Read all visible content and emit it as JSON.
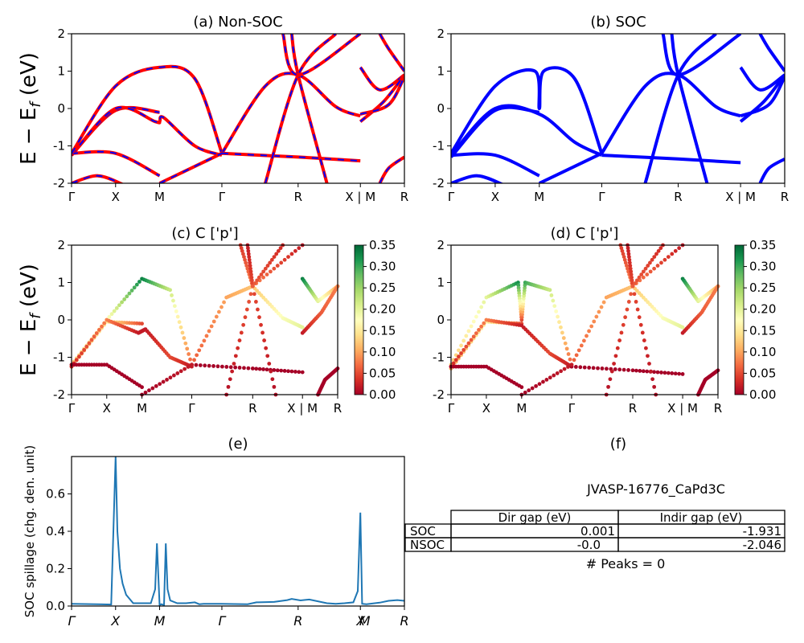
{
  "colors": {
    "red": "#ff0000",
    "blue": "#0000ff",
    "spillage": "#1f77b4"
  },
  "chart_data": [
    {
      "id": "a",
      "type": "line",
      "title": "(a) Non-SOC",
      "ylabel": "E − E_f (eV)",
      "ylim": [
        -2,
        2
      ],
      "yticks": [
        -2,
        -1,
        0,
        1,
        2
      ],
      "kpath": [
        "Γ",
        "X",
        "M",
        "Γ",
        "R",
        "X | M",
        "R"
      ],
      "kpos": [
        0,
        0.5,
        1.0,
        1.707,
        2.573,
        3.28,
        3.78
      ],
      "style": "red-blue dashed",
      "series": [
        {
          "x": [
            0,
            0.5,
            1.0
          ],
          "y": [
            -1.25,
            -0.05,
            -0.1
          ]
        },
        {
          "x": [
            0,
            0.5,
            0.95,
            1.0,
            1.05,
            1.4,
            1.707
          ],
          "y": [
            -1.25,
            0.0,
            -0.35,
            -0.35,
            -0.25,
            -1.0,
            -1.25
          ]
        },
        {
          "x": [
            0,
            0.5,
            1.0
          ],
          "y": [
            -1.2,
            -1.2,
            -1.8
          ]
        },
        {
          "x": [
            0,
            0.5,
            1.0,
            1.4,
            1.707
          ],
          "y": [
            -1.2,
            0.6,
            1.1,
            0.8,
            -1.2
          ]
        },
        {
          "x": [
            0,
            0.3,
            0.6
          ],
          "y": [
            -2.0,
            -1.8,
            -2.05
          ]
        },
        {
          "x": [
            1.707,
            2.2,
            2.573,
            3.0,
            3.28
          ],
          "y": [
            -1.2,
            0.6,
            0.9,
            0.05,
            -0.2
          ]
        },
        {
          "x": [
            1.707,
            2.573,
            3.28
          ],
          "y": [
            -1.2,
            -1.3,
            -1.4
          ]
        },
        {
          "x": [
            1.0,
            1.707
          ],
          "y": [
            -2.0,
            -1.2
          ]
        },
        {
          "x": [
            2.4,
            2.573,
            3.28
          ],
          "y": [
            2.0,
            0.9,
            2.0
          ]
        },
        {
          "x": [
            2.5,
            2.573,
            2.9
          ],
          "y": [
            2.0,
            0.9,
            -2.0
          ]
        },
        {
          "x": [
            2.2,
            2.573,
            3.0
          ],
          "y": [
            -2.0,
            0.9,
            2.0
          ]
        },
        {
          "x": [
            3.28,
            3.5,
            3.78
          ],
          "y": [
            1.1,
            0.5,
            0.9
          ]
        },
        {
          "x": [
            3.28,
            3.55,
            3.78
          ],
          "y": [
            -0.35,
            0.2,
            0.9
          ]
        },
        {
          "x": [
            3.28,
            3.6,
            3.78
          ],
          "y": [
            -0.15,
            0.1,
            0.85
          ]
        },
        {
          "x": [
            3.5,
            3.6,
            3.78
          ],
          "y": [
            2.0,
            1.6,
            1.0
          ]
        },
        {
          "x": [
            3.5,
            3.6,
            3.78
          ],
          "y": [
            -2.0,
            -1.6,
            -1.3
          ]
        }
      ]
    },
    {
      "id": "b",
      "type": "line",
      "title": "(b) SOC",
      "ylim": [
        -2,
        2
      ],
      "yticks": [
        -2,
        -1,
        0,
        1,
        2
      ],
      "kpath": [
        "Γ",
        "X",
        "M",
        "Γ",
        "R",
        "X | M",
        "R"
      ],
      "kpos": [
        0,
        0.5,
        1.0,
        1.707,
        2.573,
        3.28,
        3.78
      ],
      "style": "blue solid",
      "series": [
        {
          "x": [
            0,
            0.5,
            1.0
          ],
          "y": [
            -1.3,
            -0.05,
            -0.1
          ]
        },
        {
          "x": [
            0,
            0.5,
            1.0,
            1.4,
            1.707
          ],
          "y": [
            -1.25,
            0.0,
            -0.15,
            -0.9,
            -1.25
          ]
        },
        {
          "x": [
            0,
            0.5,
            1.0
          ],
          "y": [
            -1.25,
            -1.25,
            -1.8
          ]
        },
        {
          "x": [
            0,
            0.5,
            0.95,
            1.0,
            1.05,
            1.4,
            1.707
          ],
          "y": [
            -1.2,
            0.6,
            1.0,
            0.0,
            1.0,
            0.8,
            -1.2
          ]
        },
        {
          "x": [
            0,
            0.3,
            0.6
          ],
          "y": [
            -2.0,
            -1.8,
            -2.05
          ]
        },
        {
          "x": [
            1.707,
            2.2,
            2.573,
            3.0,
            3.28
          ],
          "y": [
            -1.2,
            0.6,
            0.9,
            0.05,
            -0.2
          ]
        },
        {
          "x": [
            1.707,
            2.573,
            3.28
          ],
          "y": [
            -1.25,
            -1.35,
            -1.45
          ]
        },
        {
          "x": [
            1.0,
            1.707
          ],
          "y": [
            -2.0,
            -1.2
          ]
        },
        {
          "x": [
            2.4,
            2.573,
            3.28
          ],
          "y": [
            2.0,
            0.9,
            2.0
          ]
        },
        {
          "x": [
            2.5,
            2.573,
            2.9
          ],
          "y": [
            2.0,
            0.9,
            -2.0
          ]
        },
        {
          "x": [
            2.2,
            2.573,
            3.0
          ],
          "y": [
            -2.0,
            0.9,
            2.0
          ]
        },
        {
          "x": [
            3.28,
            3.5,
            3.78
          ],
          "y": [
            1.1,
            0.5,
            0.9
          ]
        },
        {
          "x": [
            3.28,
            3.55,
            3.78
          ],
          "y": [
            -0.35,
            0.2,
            0.9
          ]
        },
        {
          "x": [
            3.28,
            3.6,
            3.78
          ],
          "y": [
            -0.2,
            0.1,
            0.85
          ]
        },
        {
          "x": [
            3.5,
            3.6,
            3.78
          ],
          "y": [
            2.0,
            1.6,
            1.0
          ]
        },
        {
          "x": [
            3.5,
            3.6,
            3.78
          ],
          "y": [
            -2.0,
            -1.6,
            -1.35
          ]
        }
      ]
    },
    {
      "id": "c",
      "type": "scatter",
      "title": "(c)  C ['p']",
      "ylabel": "E − E_f (eV)",
      "ylim": [
        -2,
        2
      ],
      "yticks": [
        -2,
        -1,
        0,
        1,
        2
      ],
      "kpath": [
        "Γ",
        "X",
        "M",
        "Γ",
        "R",
        "X | M",
        "R"
      ],
      "kpos": [
        0,
        0.5,
        1.0,
        1.707,
        2.573,
        3.28,
        3.78
      ],
      "colorbar": {
        "min": 0.0,
        "max": 0.35,
        "ticks": [
          "0.00",
          "0.05",
          "0.10",
          "0.15",
          "0.20",
          "0.25",
          "0.30",
          "0.35"
        ]
      },
      "series": [
        {
          "x": [
            0,
            0.5,
            1.0,
            1.4,
            1.707
          ],
          "y": [
            -1.2,
            0.0,
            1.1,
            0.8,
            -1.2
          ],
          "c": [
            0.12,
            0.17,
            0.33,
            0.22,
            0.06
          ]
        },
        {
          "x": [
            0,
            0.5,
            1.0
          ],
          "y": [
            -1.25,
            -0.05,
            -0.1
          ],
          "c": [
            0.1,
            0.15,
            0.05
          ]
        },
        {
          "x": [
            0,
            0.5,
            0.95,
            1.05,
            1.4,
            1.707
          ],
          "y": [
            -1.25,
            0.0,
            -0.35,
            -0.25,
            -1.0,
            -1.25
          ],
          "c": [
            0.03,
            0.08,
            0.02,
            0.02,
            0.05,
            0.02
          ]
        },
        {
          "x": [
            0,
            0.5,
            1.0
          ],
          "y": [
            -1.2,
            -1.2,
            -1.8
          ],
          "c": [
            0.0,
            0.0,
            0.0
          ]
        },
        {
          "x": [
            1.707,
            2.2,
            2.573,
            3.0,
            3.28
          ],
          "y": [
            -1.2,
            0.6,
            0.9,
            0.05,
            -0.2
          ],
          "c": [
            0.06,
            0.1,
            0.12,
            0.18,
            0.2
          ]
        },
        {
          "x": [
            1.707,
            2.573,
            3.28
          ],
          "y": [
            -1.2,
            -1.3,
            -1.4
          ],
          "c": [
            0.0,
            0.0,
            0.0
          ]
        },
        {
          "x": [
            1.0,
            1.707
          ],
          "y": [
            -2.0,
            -1.2
          ],
          "c": [
            0.0,
            0.02
          ]
        },
        {
          "x": [
            2.4,
            2.573,
            3.28
          ],
          "y": [
            2.0,
            0.9,
            2.0
          ],
          "c": [
            0.04,
            0.08,
            0.02
          ]
        },
        {
          "x": [
            2.5,
            2.573,
            2.9
          ],
          "y": [
            2.0,
            0.9,
            -2.0
          ],
          "c": [
            0.02,
            0.05,
            0.01
          ]
        },
        {
          "x": [
            2.2,
            2.573,
            3.0
          ],
          "y": [
            -2.0,
            0.9,
            2.0
          ],
          "c": [
            0.01,
            0.06,
            0.03
          ]
        },
        {
          "x": [
            3.28,
            3.5,
            3.78
          ],
          "y": [
            1.1,
            0.5,
            0.9
          ],
          "c": [
            0.33,
            0.2,
            0.1
          ]
        },
        {
          "x": [
            3.28,
            3.55,
            3.78
          ],
          "y": [
            -0.35,
            0.2,
            0.9
          ],
          "c": [
            0.02,
            0.06,
            0.08
          ]
        },
        {
          "x": [
            3.5,
            3.6,
            3.78
          ],
          "y": [
            -2.0,
            -1.6,
            -1.3
          ],
          "c": [
            0.0,
            0.0,
            0.0
          ]
        }
      ]
    },
    {
      "id": "d",
      "type": "scatter",
      "title": "(d) C ['p']",
      "ylim": [
        -2,
        2
      ],
      "yticks": [
        -2,
        -1,
        0,
        1,
        2
      ],
      "kpath": [
        "Γ",
        "X",
        "M",
        "Γ",
        "R",
        "X | M",
        "R"
      ],
      "kpos": [
        0,
        0.5,
        1.0,
        1.707,
        2.573,
        3.28,
        3.78
      ],
      "colorbar": {
        "min": 0.0,
        "max": 0.35,
        "ticks": [
          "0.00",
          "0.05",
          "0.10",
          "0.15",
          "0.20",
          "0.25",
          "0.30",
          "0.35"
        ]
      },
      "series": [
        {
          "x": [
            0,
            0.5,
            0.95,
            1.0,
            1.05,
            1.4,
            1.707
          ],
          "y": [
            -1.2,
            0.6,
            1.0,
            0.0,
            1.0,
            0.8,
            -1.2
          ],
          "c": [
            0.12,
            0.2,
            0.32,
            0.05,
            0.3,
            0.22,
            0.06
          ]
        },
        {
          "x": [
            0,
            0.5,
            1.0
          ],
          "y": [
            -1.3,
            -0.05,
            -0.1
          ],
          "c": [
            0.1,
            0.16,
            0.05
          ]
        },
        {
          "x": [
            0,
            0.5,
            1.0,
            1.4,
            1.707
          ],
          "y": [
            -1.25,
            0.0,
            -0.15,
            -0.9,
            -1.25
          ],
          "c": [
            0.03,
            0.08,
            0.02,
            0.05,
            0.02
          ]
        },
        {
          "x": [
            0,
            0.5,
            1.0
          ],
          "y": [
            -1.25,
            -1.25,
            -1.8
          ],
          "c": [
            0.0,
            0.0,
            0.0
          ]
        },
        {
          "x": [
            1.707,
            2.2,
            2.573,
            3.0,
            3.28
          ],
          "y": [
            -1.2,
            0.6,
            0.9,
            0.05,
            -0.2
          ],
          "c": [
            0.06,
            0.1,
            0.12,
            0.18,
            0.2
          ]
        },
        {
          "x": [
            1.707,
            2.573,
            3.28
          ],
          "y": [
            -1.25,
            -1.35,
            -1.45
          ],
          "c": [
            0.0,
            0.0,
            0.0
          ]
        },
        {
          "x": [
            1.0,
            1.707
          ],
          "y": [
            -2.0,
            -1.2
          ],
          "c": [
            0.0,
            0.02
          ]
        },
        {
          "x": [
            2.4,
            2.573,
            3.28
          ],
          "y": [
            2.0,
            0.9,
            2.0
          ],
          "c": [
            0.04,
            0.08,
            0.02
          ]
        },
        {
          "x": [
            2.5,
            2.573,
            2.9
          ],
          "y": [
            2.0,
            0.9,
            -2.0
          ],
          "c": [
            0.02,
            0.05,
            0.01
          ]
        },
        {
          "x": [
            2.2,
            2.573,
            3.0
          ],
          "y": [
            -2.0,
            0.9,
            2.0
          ],
          "c": [
            0.01,
            0.06,
            0.03
          ]
        },
        {
          "x": [
            3.28,
            3.5,
            3.78
          ],
          "y": [
            1.1,
            0.5,
            0.9
          ],
          "c": [
            0.33,
            0.2,
            0.1
          ]
        },
        {
          "x": [
            3.28,
            3.55,
            3.78
          ],
          "y": [
            -0.35,
            0.2,
            0.9
          ],
          "c": [
            0.02,
            0.06,
            0.08
          ]
        },
        {
          "x": [
            3.5,
            3.6,
            3.78
          ],
          "y": [
            -2.0,
            -1.6,
            -1.35
          ],
          "c": [
            0.0,
            0.0,
            0.0
          ]
        }
      ]
    },
    {
      "id": "e",
      "type": "line",
      "title": "(e)",
      "ylabel": "SOC spillage (chg. den. unit)",
      "xlim": [
        0,
        3.78
      ],
      "ylim": [
        0,
        0.8
      ],
      "yticks": [
        "0.0",
        "0.2",
        "0.4",
        "0.6"
      ],
      "kpath": [
        "Γ",
        "X",
        "M",
        "Γ",
        "R",
        "XM",
        "R"
      ],
      "kpos": [
        0,
        0.5,
        1.0,
        1.707,
        2.573,
        3.28,
        3.78
      ],
      "kpath_labels_raw": [
        "Γ",
        "X",
        "M",
        "Γ",
        "R",
        "X",
        "M",
        "R"
      ],
      "series": [
        {
          "x": [
            0,
            0.45,
            0.5,
            0.52,
            0.55,
            0.58,
            0.62,
            0.7,
            0.9,
            0.95,
            0.97,
            1.0,
            1.02,
            1.05,
            1.07,
            1.09,
            1.12,
            1.2,
            1.3,
            1.4,
            1.45,
            1.5,
            1.7,
            2.0,
            2.1,
            2.12,
            2.3,
            2.45,
            2.5,
            2.6,
            2.7,
            2.9,
            3.0,
            3.1,
            3.2,
            3.25,
            3.28,
            3.3,
            3.35,
            3.5,
            3.6,
            3.7,
            3.78
          ],
          "y": [
            0.012,
            0.008,
            0.8,
            0.4,
            0.2,
            0.12,
            0.06,
            0.015,
            0.015,
            0.09,
            0.335,
            0.005,
            0.01,
            0.005,
            0.335,
            0.09,
            0.03,
            0.015,
            0.015,
            0.02,
            0.01,
            0.012,
            0.012,
            0.01,
            0.02,
            0.02,
            0.022,
            0.032,
            0.038,
            0.03,
            0.035,
            0.015,
            0.012,
            0.015,
            0.02,
            0.08,
            0.5,
            0.012,
            0.01,
            0.018,
            0.028,
            0.032,
            0.028
          ]
        }
      ]
    }
  ],
  "panel_f": {
    "title": "(f)",
    "material": "JVASP-16776_CaPd3C",
    "table": {
      "headers": [
        "Dir gap (eV)",
        "Indir gap (eV)"
      ],
      "rows": [
        {
          "label": "SOC",
          "dir": "0.001",
          "indir": "-1.931"
        },
        {
          "label": "NSOC",
          "dir": "-0.0",
          "indir": "-2.046"
        }
      ]
    },
    "peaks": "# Peaks = 0"
  }
}
